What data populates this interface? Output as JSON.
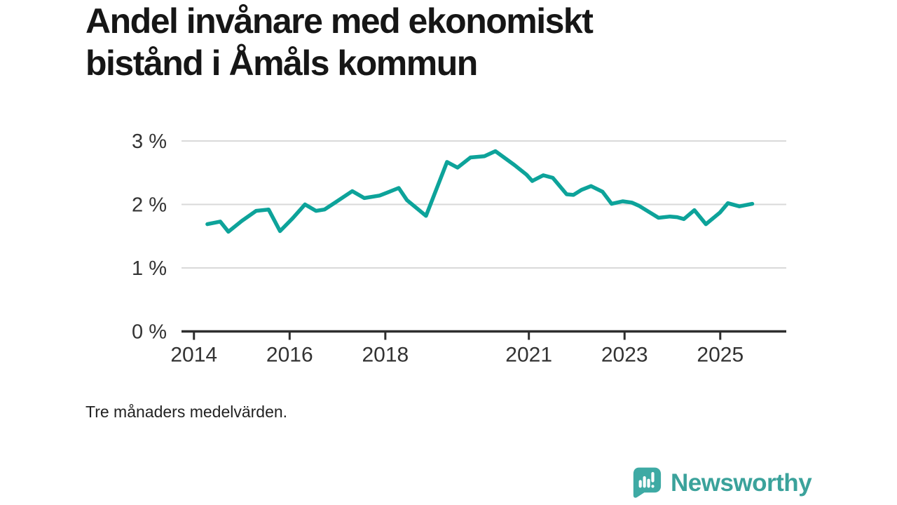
{
  "title": "Andel invånare med ekonomiskt bistånd i Åmåls kommun",
  "title_lines": [
    "Andel invånare med ekonomiskt",
    "bistånd i Åmåls kommun"
  ],
  "note": "Tre månaders medelvärden.",
  "logo": {
    "name": "Newsworthy",
    "icon": "bar-chart-speech-bubble"
  },
  "colors": {
    "line": "#0da39a",
    "grid": "#d9d9d9",
    "axis": "#2e2e2e",
    "tick_label": "#333333",
    "title": "#161616",
    "note": "#222222",
    "logo": "#3ba29b",
    "background": "#ffffff"
  },
  "chart_data": {
    "type": "line",
    "title": "Andel invånare med ekonomiskt bistånd i Åmåls kommun",
    "subtitle": "Tre månaders medelvärden.",
    "x_unit": "decimal_year",
    "y_unit": "percent",
    "xlabel": "",
    "ylabel": "",
    "xlim": [
      2013.74,
      2026.38
    ],
    "ylim": [
      0,
      3
    ],
    "grid": "horizontal",
    "legend": "none",
    "yticks": [
      {
        "value": 0,
        "label": "0 %"
      },
      {
        "value": 1,
        "label": "1 %"
      },
      {
        "value": 2,
        "label": "2 %"
      },
      {
        "value": 3,
        "label": "3 %"
      }
    ],
    "xticks": [
      {
        "value": 2014,
        "label": "2014"
      },
      {
        "value": 2016,
        "label": "2016"
      },
      {
        "value": 2018,
        "label": "2018"
      },
      {
        "value": 2021,
        "label": "2021"
      },
      {
        "value": 2023,
        "label": "2023"
      },
      {
        "value": 2025,
        "label": "2025"
      }
    ],
    "series_name": "Andel invånare med ekonomiskt bistånd",
    "x": [
      2014.28,
      2014.55,
      2014.72,
      2015.0,
      2015.3,
      2015.56,
      2015.8,
      2016.06,
      2016.32,
      2016.55,
      2016.73,
      2016.95,
      2017.31,
      2017.56,
      2017.88,
      2018.05,
      2018.28,
      2018.45,
      2018.85,
      2019.29,
      2019.51,
      2019.78,
      2020.07,
      2020.3,
      2020.7,
      2020.95,
      2021.07,
      2021.3,
      2021.5,
      2021.79,
      2021.93,
      2022.1,
      2022.3,
      2022.54,
      2022.73,
      2022.96,
      2023.15,
      2023.3,
      2023.71,
      2023.95,
      2024.1,
      2024.24,
      2024.46,
      2024.7,
      2024.99,
      2025.16,
      2025.4,
      2025.67
    ],
    "values": [
      1.69,
      1.73,
      1.57,
      1.74,
      1.9,
      1.92,
      1.58,
      1.78,
      2.0,
      1.9,
      1.92,
      2.03,
      2.21,
      2.1,
      2.14,
      2.19,
      2.26,
      2.07,
      1.82,
      2.67,
      2.58,
      2.74,
      2.76,
      2.84,
      2.62,
      2.47,
      2.37,
      2.46,
      2.42,
      2.16,
      2.15,
      2.23,
      2.29,
      2.2,
      2.01,
      2.05,
      2.03,
      1.98,
      1.79,
      1.81,
      1.8,
      1.77,
      1.91,
      1.69,
      1.87,
      2.02,
      1.97,
      2.01
    ]
  }
}
